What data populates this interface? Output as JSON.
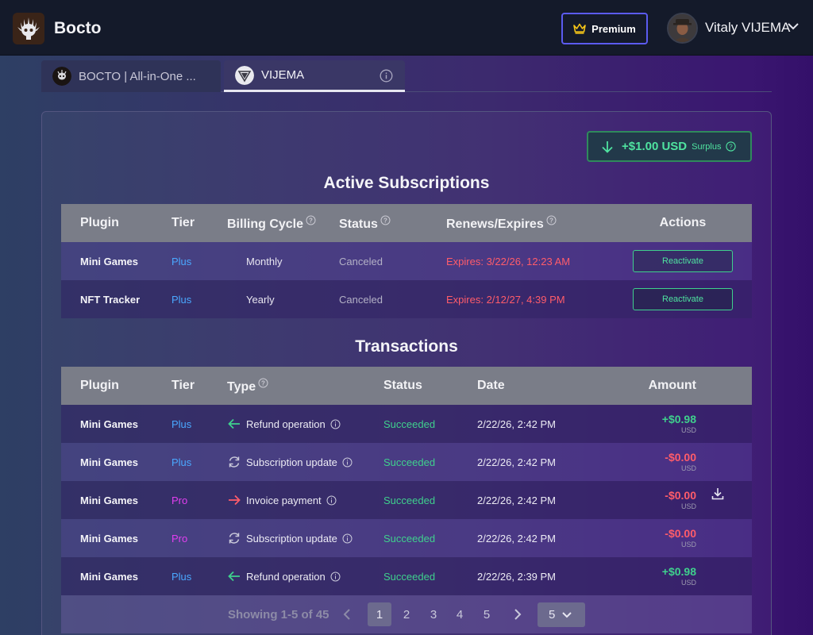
{
  "app": {
    "brand": "Bocto"
  },
  "header": {
    "premium_label": "Premium",
    "user_name": "Vitaly VIJEMA"
  },
  "tabs": [
    {
      "label": "BOCTO | All-in-One ..."
    },
    {
      "label": "VIJEMA"
    }
  ],
  "surplus": {
    "amount": "+$1.00 USD",
    "label": "Surplus"
  },
  "subscriptions": {
    "title": "Active Subscriptions",
    "columns": [
      "Plugin",
      "Tier",
      "Billing Cycle",
      "Status",
      "Renews/Expires",
      "Actions"
    ],
    "rows": [
      {
        "plugin": "Mini Games",
        "tier": "Plus",
        "cycle": "Monthly",
        "status": "Canceled",
        "expires": "Expires: 3/22/26, 12:23 AM",
        "action": "Reactivate"
      },
      {
        "plugin": "NFT Tracker",
        "tier": "Plus",
        "cycle": "Yearly",
        "status": "Canceled",
        "expires": "Expires: 2/12/27, 4:39 PM",
        "action": "Reactivate"
      }
    ]
  },
  "transactions": {
    "title": "Transactions",
    "columns": [
      "Plugin",
      "Tier",
      "Type",
      "Status",
      "Date",
      "Amount"
    ],
    "rows": [
      {
        "plugin": "Mini Games",
        "tier": "Plus",
        "type": "Refund operation",
        "type_icon": "arrow-left-icon",
        "status": "Succeeded",
        "date": "2/22/26, 2:42 PM",
        "amount": "+$0.98",
        "currency": "USD"
      },
      {
        "plugin": "Mini Games",
        "tier": "Plus",
        "type": "Subscription update",
        "type_icon": "refresh-icon",
        "status": "Succeeded",
        "date": "2/22/26, 2:42 PM",
        "amount": "-$0.00",
        "currency": "USD"
      },
      {
        "plugin": "Mini Games",
        "tier": "Pro",
        "type": "Invoice payment",
        "type_icon": "arrow-right-icon",
        "status": "Succeeded",
        "date": "2/22/26, 2:42 PM",
        "amount": "-$0.00",
        "currency": "USD"
      },
      {
        "plugin": "Mini Games",
        "tier": "Pro",
        "type": "Subscription update",
        "type_icon": "refresh-icon",
        "status": "Succeeded",
        "date": "2/22/26, 2:42 PM",
        "amount": "-$0.00",
        "currency": "USD"
      },
      {
        "plugin": "Mini Games",
        "tier": "Plus",
        "type": "Refund operation",
        "type_icon": "arrow-left-icon",
        "status": "Succeeded",
        "date": "2/22/26, 2:39 PM",
        "amount": "+$0.98",
        "currency": "USD"
      }
    ]
  },
  "pagination": {
    "showing": "Showing 1-5 of 45",
    "pages": [
      "1",
      "2",
      "3",
      "4",
      "5"
    ],
    "current": "1",
    "page_size": "5"
  },
  "colors": {
    "accent_premium": "#5b5bf0",
    "green": "#3fd08d",
    "red": "#ff5c6a",
    "tier_plus": "#4aa8ff",
    "tier_pro": "#e23ef0"
  }
}
